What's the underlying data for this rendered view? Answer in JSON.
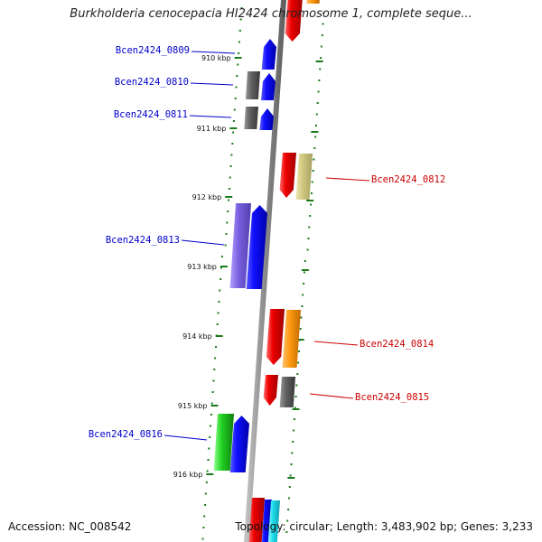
{
  "title": "Burkholderia cenocepacia HI2424 chromosome 1, complete seque...",
  "accession": "Accession: NC_008542",
  "topology": "Topology: circular; Length: 3,483,902 bp; Genes: 3,233",
  "colors": {
    "label_left": "#0000cc",
    "label_right": "#cc0000",
    "backbone": "#9a9a9a",
    "tick": "#1a7a1a"
  },
  "ticks": [
    "910 kbp",
    "911 kbp",
    "912 kbp",
    "913 kbp",
    "914 kbp",
    "915 kbp",
    "916 kbp"
  ],
  "gene_labels": [
    {
      "name": "Bcen2424_0809",
      "side": "left"
    },
    {
      "name": "Bcen2424_0810",
      "side": "left"
    },
    {
      "name": "Bcen2424_0811",
      "side": "left"
    },
    {
      "name": "Bcen2424_0812",
      "side": "right"
    },
    {
      "name": "Bcen2424_0813",
      "side": "left"
    },
    {
      "name": "Bcen2424_0814",
      "side": "right"
    },
    {
      "name": "Bcen2424_0815",
      "side": "right"
    },
    {
      "name": "Bcen2424_0816",
      "side": "left"
    }
  ],
  "feature_colors": [
    "red",
    "orange",
    "blue",
    "gray",
    "khaki",
    "purple",
    "green",
    "cyan"
  ]
}
